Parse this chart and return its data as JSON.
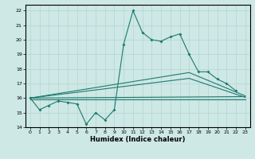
{
  "xlabel": "Humidex (Indice chaleur)",
  "background_color": "#cde8e5",
  "grid_color": "#b8d8d5",
  "line_color": "#1e7a6e",
  "xlim": [
    -0.5,
    23.5
  ],
  "ylim": [
    14,
    22.4
  ],
  "yticks": [
    14,
    15,
    16,
    17,
    18,
    19,
    20,
    21,
    22
  ],
  "xticks": [
    0,
    1,
    2,
    3,
    4,
    5,
    6,
    7,
    8,
    9,
    10,
    11,
    12,
    13,
    14,
    15,
    16,
    17,
    18,
    19,
    20,
    21,
    22,
    23
  ],
  "xtick_labels": [
    "0",
    "1",
    "2",
    "3",
    "4",
    "5",
    "6",
    "7",
    "8",
    "9",
    "10",
    "11",
    "12",
    "13",
    "14",
    "15",
    "16",
    "17",
    "18",
    "19",
    "20",
    "21",
    "22",
    "23"
  ],
  "line1_x": [
    0,
    1,
    2,
    3,
    4,
    5,
    6,
    7,
    8,
    9,
    10,
    11,
    12,
    13,
    14,
    15,
    16,
    17,
    18,
    19,
    20,
    21,
    22
  ],
  "line1_y": [
    16.0,
    15.2,
    15.5,
    15.8,
    15.7,
    15.6,
    14.2,
    15.0,
    14.5,
    15.2,
    19.7,
    22.0,
    20.5,
    20.0,
    19.9,
    20.2,
    20.4,
    19.0,
    17.8,
    17.8,
    17.3,
    17.0,
    16.5
  ],
  "line2_x": [
    0,
    23
  ],
  "line2_y": [
    15.9,
    15.9
  ],
  "line3_x": [
    0,
    23
  ],
  "line3_y": [
    16.0,
    16.1
  ],
  "line4_x": [
    0,
    17,
    23
  ],
  "line4_y": [
    16.0,
    17.75,
    16.15
  ],
  "line5_x": [
    0,
    17,
    23
  ],
  "line5_y": [
    16.0,
    17.35,
    16.05
  ]
}
